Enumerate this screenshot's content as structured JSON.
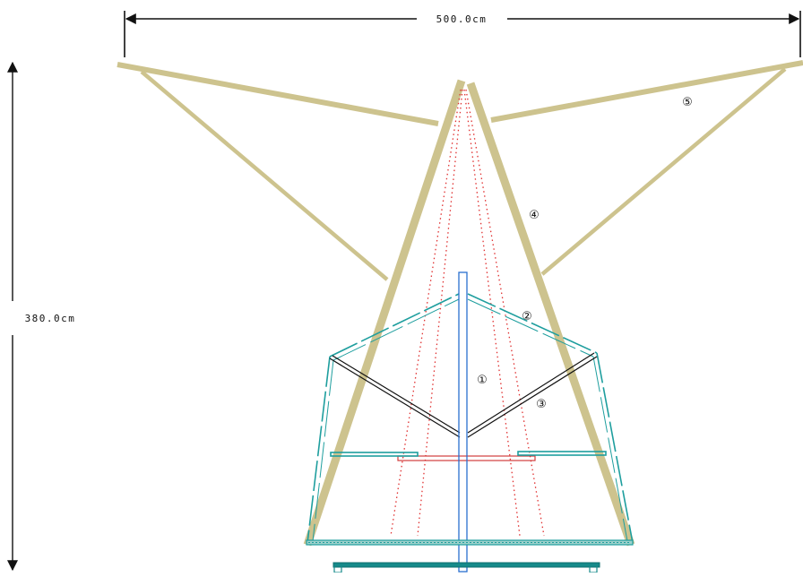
{
  "dimensions": {
    "width_label": "500.0cm",
    "height_label": "380.0cm"
  },
  "callouts": {
    "c1": "①",
    "c2": "②",
    "c3": "③",
    "c4": "④",
    "c5": "⑤"
  },
  "colors": {
    "timber": "#cdc38e",
    "teal": "#1e9e9e",
    "dark_teal": "#168a8a",
    "blue": "#2a6fcf",
    "red_dotted": "#e03030",
    "red_line": "#d23c3c",
    "black": "#111111"
  }
}
